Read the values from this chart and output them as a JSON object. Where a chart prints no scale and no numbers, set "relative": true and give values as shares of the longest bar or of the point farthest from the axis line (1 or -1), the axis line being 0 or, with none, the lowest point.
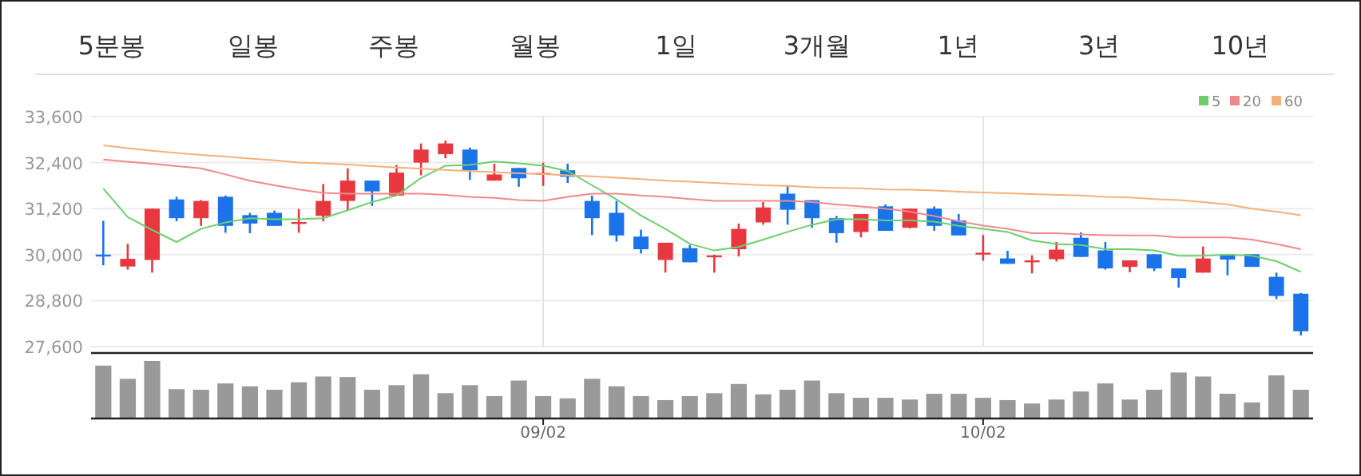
{
  "chart_data": [
    {
      "type": "other",
      "annotations": [
        "5분봉",
        "일봉",
        "주봉",
        "월봉",
        "1일",
        "3개월",
        "1년",
        "3년",
        "10년"
      ]
    },
    {
      "type": "candlestick",
      "categories": [
        null,
        null,
        null,
        null,
        null,
        null,
        null,
        null,
        null,
        null,
        null,
        null,
        null,
        null,
        null,
        null,
        null,
        null,
        null,
        null,
        null,
        null,
        null,
        null,
        null,
        null,
        null,
        null,
        null,
        null,
        null,
        null,
        null,
        null,
        null,
        null,
        null,
        null,
        null,
        null,
        null,
        null,
        null,
        null,
        null,
        null,
        null,
        null,
        null,
        null
      ],
      "ohlc": [
        [
          30000,
          30880,
          29720,
          29950
        ],
        [
          29690,
          30280,
          29610,
          29890
        ],
        [
          29860,
          31200,
          29530,
          31200
        ],
        [
          31440,
          31510,
          30870,
          30950
        ],
        [
          30950,
          31420,
          30750,
          31400
        ],
        [
          31510,
          31540,
          30570,
          30750
        ],
        [
          31030,
          31090,
          30560,
          30810
        ],
        [
          31090,
          31150,
          30750,
          30750
        ],
        [
          30820,
          31190,
          30570,
          30850
        ],
        [
          31010,
          31840,
          30870,
          31400
        ],
        [
          31400,
          32250,
          31160,
          31930
        ],
        [
          31930,
          31930,
          31270,
          31650
        ],
        [
          31540,
          32340,
          31540,
          32140
        ],
        [
          32400,
          32900,
          32070,
          32740
        ],
        [
          32620,
          32970,
          32510,
          32900
        ],
        [
          32740,
          32790,
          31950,
          32200
        ],
        [
          31930,
          32370,
          31930,
          32090
        ],
        [
          32260,
          32260,
          31770,
          31990
        ],
        [
          32100,
          32400,
          31790,
          32130
        ],
        [
          32200,
          32370,
          31870,
          32030
        ],
        [
          31400,
          31540,
          30510,
          30950
        ],
        [
          31090,
          31400,
          30340,
          30500
        ],
        [
          30470,
          30650,
          30030,
          30140
        ],
        [
          29860,
          30310,
          29530,
          30310
        ],
        [
          30170,
          30250,
          29800,
          29800
        ],
        [
          29960,
          30000,
          29530,
          29980
        ],
        [
          30140,
          30810,
          29950,
          30670
        ],
        [
          30840,
          31370,
          30780,
          31230
        ],
        [
          31590,
          31810,
          30780,
          31170
        ],
        [
          31420,
          31420,
          30700,
          30950
        ],
        [
          30950,
          31010,
          30310,
          30560
        ],
        [
          30590,
          31060,
          30450,
          31060
        ],
        [
          31260,
          31310,
          30620,
          30620
        ],
        [
          30700,
          31200,
          30680,
          31200
        ],
        [
          31200,
          31260,
          30620,
          30750
        ],
        [
          30890,
          31060,
          30500,
          30500
        ],
        [
          30030,
          30510,
          29840,
          30050
        ],
        [
          29900,
          30100,
          29760,
          29760
        ],
        [
          29830,
          29980,
          29510,
          29850
        ],
        [
          29880,
          30330,
          29820,
          30130
        ],
        [
          30440,
          30580,
          29940,
          29940
        ],
        [
          30110,
          30330,
          29610,
          29640
        ],
        [
          29680,
          29850,
          29540,
          29850
        ],
        [
          30010,
          30010,
          29570,
          29640
        ],
        [
          29640,
          29640,
          29140,
          29390
        ],
        [
          29530,
          30210,
          29530,
          29900
        ],
        [
          30010,
          30010,
          29460,
          29870
        ],
        [
          30010,
          30010,
          29680,
          29680
        ],
        [
          29420,
          29530,
          28840,
          28920
        ],
        [
          28980,
          29000,
          27890,
          28000
        ]
      ],
      "colors": [
        "#1a73e8",
        "#e8373e",
        "#e8373e",
        "#1a73e8",
        "#e8373e",
        "#1a73e8",
        "#1a73e8",
        "#1a73e8",
        "#e8373e",
        "#e8373e",
        "#e8373e",
        "#1a73e8",
        "#e8373e",
        "#e8373e",
        "#e8373e",
        "#1a73e8",
        "#e8373e",
        "#1a73e8",
        "#e8373e",
        "#1a73e8",
        "#1a73e8",
        "#1a73e8",
        "#1a73e8",
        "#e8373e",
        "#1a73e8",
        "#e8373e",
        "#e8373e",
        "#e8373e",
        "#1a73e8",
        "#1a73e8",
        "#1a73e8",
        "#e8373e",
        "#1a73e8",
        "#e8373e",
        "#1a73e8",
        "#1a73e8",
        "#e8373e",
        "#1a73e8",
        "#e8373e",
        "#e8373e",
        "#1a73e8",
        "#1a73e8",
        "#e8373e",
        "#1a73e8",
        "#1a73e8",
        "#e8373e",
        "#1a73e8",
        "#1a73e8",
        "#1a73e8",
        "#1a73e8"
      ],
      "series": [
        {
          "name": "5",
          "type": "line",
          "color": "#6ccf6c",
          "values": [
            31720,
            30980,
            30640,
            30330,
            30670,
            30840,
            30950,
            30920,
            30920,
            30950,
            31160,
            31370,
            31540,
            32000,
            32320,
            32340,
            32430,
            32380,
            32320,
            32180,
            31810,
            31440,
            31020,
            30670,
            30280,
            30110,
            30200,
            30390,
            30590,
            30780,
            30920,
            30920,
            30890,
            30890,
            30860,
            30750,
            30670,
            30590,
            30370,
            30280,
            30250,
            30140,
            30140,
            30110,
            29970,
            29970,
            30000,
            29970,
            29830,
            29550
          ]
        },
        {
          "name": "20",
          "type": "line",
          "color": "#f08a8a",
          "values": [
            32480,
            32420,
            32370,
            32310,
            32250,
            32090,
            31930,
            31810,
            31700,
            31610,
            31590,
            31590,
            31590,
            31590,
            31560,
            31510,
            31480,
            31420,
            31400,
            31510,
            31590,
            31590,
            31540,
            31510,
            31450,
            31400,
            31400,
            31400,
            31400,
            31370,
            31310,
            31260,
            31200,
            31120,
            31010,
            30870,
            30760,
            30670,
            30560,
            30560,
            30530,
            30510,
            30500,
            30500,
            30450,
            30450,
            30450,
            30390,
            30280,
            30140
          ]
        },
        {
          "name": "60",
          "type": "line",
          "color": "#f4b07a",
          "values": [
            32850,
            32780,
            32710,
            32650,
            32600,
            32560,
            32510,
            32460,
            32400,
            32380,
            32350,
            32310,
            32270,
            32240,
            32210,
            32180,
            32150,
            32120,
            32100,
            32070,
            32040,
            32010,
            31970,
            31930,
            31900,
            31870,
            31840,
            31810,
            31790,
            31760,
            31740,
            31730,
            31700,
            31690,
            31670,
            31640,
            31620,
            31600,
            31580,
            31560,
            31540,
            31510,
            31490,
            31450,
            31420,
            31370,
            31310,
            31200,
            31120,
            31030
          ]
        }
      ],
      "ylim": [
        27600,
        33600
      ],
      "yticks": [
        {
          "value": 27600,
          "label": "27,600"
        },
        {
          "value": 28800,
          "label": "28,800"
        },
        {
          "value": 30000,
          "label": "30,000"
        },
        {
          "value": 31200,
          "label": "31,200"
        },
        {
          "value": 32400,
          "label": "32,400"
        },
        {
          "value": 33600,
          "label": "33,600"
        }
      ],
      "grid": true,
      "legend": "top right",
      "tick_labels": "y"
    },
    {
      "type": "bar",
      "relative": true,
      "color": "#999999",
      "tick_labels": "x",
      "categories": [
        null,
        null,
        null,
        null,
        null,
        null,
        null,
        null,
        null,
        null,
        null,
        null,
        null,
        null,
        null,
        null,
        null,
        null,
        "09/02",
        null,
        null,
        null,
        null,
        null,
        null,
        null,
        null,
        null,
        null,
        null,
        null,
        null,
        null,
        null,
        null,
        null,
        "10/02",
        null,
        null,
        null,
        null,
        null,
        null,
        null,
        null,
        null,
        null,
        null,
        null,
        null
      ],
      "values": [
        0.92,
        0.69,
        1,
        0.51,
        0.5,
        0.61,
        0.56,
        0.5,
        0.63,
        0.73,
        0.72,
        0.5,
        0.58,
        0.77,
        0.44,
        0.58,
        0.39,
        0.66,
        0.39,
        0.35,
        0.69,
        0.56,
        0.39,
        0.32,
        0.39,
        0.44,
        0.6,
        0.42,
        0.5,
        0.66,
        0.44,
        0.36,
        0.36,
        0.33,
        0.43,
        0.43,
        0.36,
        0.32,
        0.26,
        0.33,
        0.47,
        0.61,
        0.33,
        0.5,
        0.8,
        0.73,
        0.43,
        0.28,
        0.75,
        0.5
      ]
    }
  ]
}
